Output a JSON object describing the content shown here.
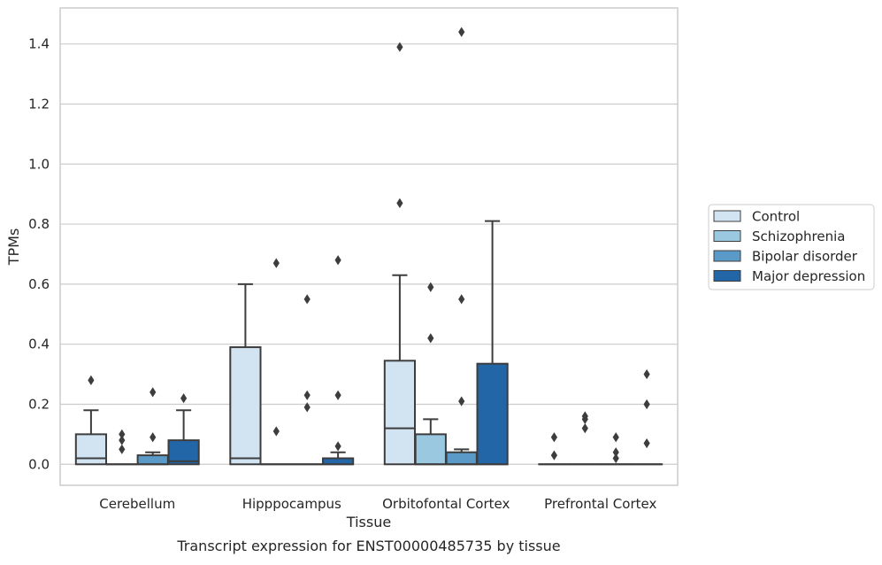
{
  "chart_data": {
    "type": "boxplot",
    "title": "",
    "caption": "Transcript expression for ENST00000485735 by tissue",
    "xlabel": "Tissue",
    "ylabel": "TPMs",
    "ylim": [
      -0.07,
      1.52
    ],
    "yticks": [
      0.0,
      0.2,
      0.4,
      0.6,
      0.8,
      1.0,
      1.2,
      1.4
    ],
    "ytick_labels": [
      "0.0",
      "0.2",
      "0.4",
      "0.6",
      "0.8",
      "1.0",
      "1.2",
      "1.4"
    ],
    "categories": [
      "Cerebellum",
      "Hipppocampus",
      "Orbitofontal Cortex",
      "Prefrontal Cortex"
    ],
    "grid": "horizontal",
    "legend_position": "right",
    "series": [
      {
        "name": "Control",
        "color": "#d2e3f2",
        "boxes": [
          {
            "q1": 0.0,
            "median": 0.02,
            "q3": 0.1,
            "whisker_low": 0.0,
            "whisker_high": 0.18,
            "outliers": [
              0.28
            ]
          },
          {
            "q1": 0.0,
            "median": 0.02,
            "q3": 0.39,
            "whisker_low": 0.0,
            "whisker_high": 0.6,
            "outliers": []
          },
          {
            "q1": 0.0,
            "median": 0.12,
            "q3": 0.345,
            "whisker_low": 0.0,
            "whisker_high": 0.63,
            "outliers": [
              0.87,
              1.39
            ]
          },
          {
            "q1": 0.0,
            "median": 0.0,
            "q3": 0.0,
            "whisker_low": 0.0,
            "whisker_high": 0.0,
            "outliers": [
              0.03,
              0.09
            ]
          }
        ]
      },
      {
        "name": "Schizophrenia",
        "color": "#9ac8e0",
        "boxes": [
          {
            "q1": 0.0,
            "median": 0.0,
            "q3": 0.0,
            "whisker_low": 0.0,
            "whisker_high": 0.0,
            "outliers": [
              0.05,
              0.08,
              0.1
            ]
          },
          {
            "q1": 0.0,
            "median": 0.0,
            "q3": 0.0,
            "whisker_low": 0.0,
            "whisker_high": 0.0,
            "outliers": [
              0.11,
              0.67
            ]
          },
          {
            "q1": 0.0,
            "median": 0.0,
            "q3": 0.1,
            "whisker_low": 0.0,
            "whisker_high": 0.15,
            "outliers": [
              0.42,
              0.59
            ]
          },
          {
            "q1": 0.0,
            "median": 0.0,
            "q3": 0.0,
            "whisker_low": 0.0,
            "whisker_high": 0.0,
            "outliers": [
              0.12,
              0.15,
              0.16
            ]
          }
        ]
      },
      {
        "name": "Bipolar disorder",
        "color": "#5a9ac8",
        "boxes": [
          {
            "q1": 0.0,
            "median": 0.0,
            "q3": 0.03,
            "whisker_low": 0.0,
            "whisker_high": 0.04,
            "outliers": [
              0.09,
              0.24
            ]
          },
          {
            "q1": 0.0,
            "median": 0.0,
            "q3": 0.0,
            "whisker_low": 0.0,
            "whisker_high": 0.0,
            "outliers": [
              0.19,
              0.23,
              0.55
            ]
          },
          {
            "q1": 0.0,
            "median": 0.0,
            "q3": 0.04,
            "whisker_low": 0.0,
            "whisker_high": 0.05,
            "outliers": [
              0.21,
              0.55,
              1.44
            ]
          },
          {
            "q1": 0.0,
            "median": 0.0,
            "q3": 0.0,
            "whisker_low": 0.0,
            "whisker_high": 0.0,
            "outliers": [
              0.02,
              0.04,
              0.09
            ]
          }
        ]
      },
      {
        "name": "Major depression",
        "color": "#2266a8",
        "boxes": [
          {
            "q1": 0.0,
            "median": 0.01,
            "q3": 0.08,
            "whisker_low": 0.0,
            "whisker_high": 0.18,
            "outliers": [
              0.22
            ]
          },
          {
            "q1": 0.0,
            "median": 0.0,
            "q3": 0.02,
            "whisker_low": 0.0,
            "whisker_high": 0.04,
            "outliers": [
              0.06,
              0.23,
              0.68
            ]
          },
          {
            "q1": 0.0,
            "median": 0.0,
            "q3": 0.335,
            "whisker_low": 0.0,
            "whisker_high": 0.81,
            "outliers": []
          },
          {
            "q1": 0.0,
            "median": 0.0,
            "q3": 0.0,
            "whisker_low": 0.0,
            "whisker_high": 0.0,
            "outliers": [
              0.07,
              0.2,
              0.3
            ]
          }
        ]
      }
    ]
  }
}
